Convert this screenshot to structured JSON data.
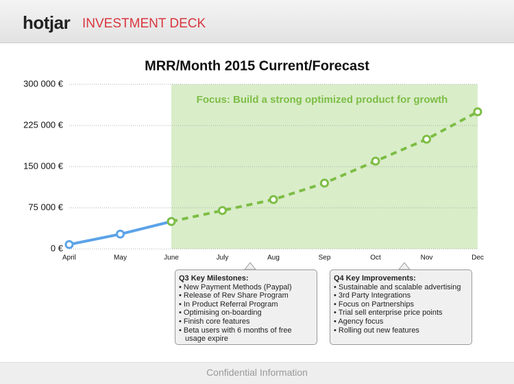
{
  "header": {
    "logo": "hotjar",
    "title": "INVESTMENT DECK"
  },
  "chart_data": {
    "type": "line",
    "title": "MRR/Month 2015 Current/Forecast",
    "annotation": "Focus: Build a strong optimized product for growth",
    "categories": [
      "April",
      "May",
      "June",
      "July",
      "Aug",
      "Sep",
      "Oct",
      "Nov",
      "Dec"
    ],
    "series": [
      {
        "name": "Current",
        "color": "#5ba3e8",
        "dashed": false,
        "values": [
          8000,
          27000,
          50000,
          null,
          null,
          null,
          null,
          null,
          null
        ]
      },
      {
        "name": "Forecast",
        "color": "#7dbd45",
        "dashed": true,
        "values": [
          null,
          null,
          50000,
          70000,
          90000,
          120000,
          160000,
          200000,
          250000
        ]
      }
    ],
    "ylim": [
      0,
      300000
    ],
    "yticks": [
      {
        "value": 0,
        "label": "0 €"
      },
      {
        "value": 75000,
        "label": "75 000 €"
      },
      {
        "value": 150000,
        "label": "150 000 €"
      },
      {
        "value": 225000,
        "label": "225 000 €"
      },
      {
        "value": 300000,
        "label": "300 000 €"
      }
    ],
    "grid": true
  },
  "callouts": [
    {
      "title": "Q3 Key Milestones:",
      "items": [
        "New Payment Methods (Paypal)",
        "Release of Rev Share Program",
        "In Product Referral Program",
        "Optimising on-boarding",
        "Finish core features",
        "Beta users with 6 months of free usage expire"
      ]
    },
    {
      "title": "Q4 Key Improvements:",
      "items": [
        "Sustainable and scalable advertising",
        "3rd Party Integrations",
        "Focus on Partnerships",
        "Trial sell enterprise price points",
        "Agency focus",
        "Rolling out new features"
      ]
    }
  ],
  "footer": "Confidential Information"
}
